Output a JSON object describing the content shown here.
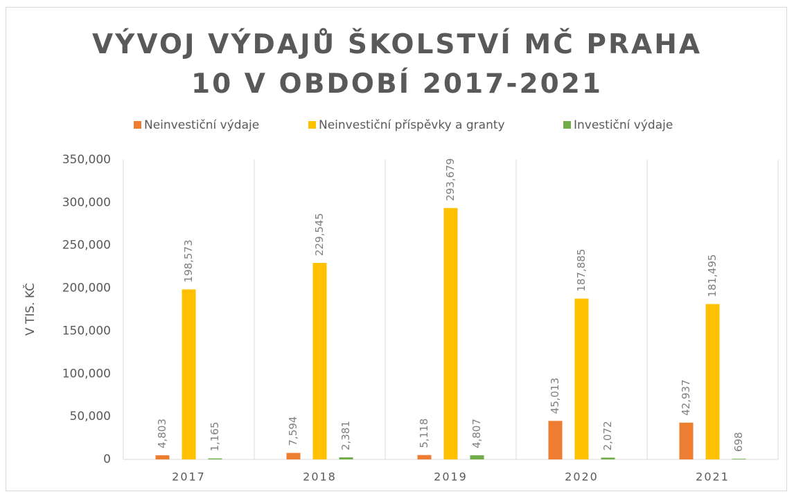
{
  "chart_data": {
    "type": "bar",
    "title": "VÝVOJ VÝDAJŮ ŠKOLSTVÍ MČ PRAHA 10 V OBDOBÍ 2017-2021",
    "y_label": "V TIS. KČ",
    "categories": [
      "2017",
      "2018",
      "2019",
      "2020",
      "2021"
    ],
    "series": [
      {
        "name": "Neinvestiční výdaje",
        "color": "#ed7d31",
        "values": [
          4803,
          7594,
          5118,
          45013,
          42937
        ],
        "value_labels": [
          "4,803",
          "7,594",
          "5,118",
          "45,013",
          "42,937"
        ]
      },
      {
        "name": "Neinvestiční příspěvky a granty",
        "color": "#ffc000",
        "values": [
          198573,
          229545,
          293679,
          187885,
          181495
        ],
        "value_labels": [
          "198,573",
          "229,545",
          "293,679",
          "187,885",
          "181,495"
        ]
      },
      {
        "name": "Investiční výdaje",
        "color": "#70ad47",
        "values": [
          1165,
          2381,
          4807,
          2072,
          698
        ],
        "value_labels": [
          "1,165",
          "2,381",
          "4,807",
          "2,072",
          "698"
        ]
      }
    ],
    "ylim": [
      0,
      350000
    ],
    "yticks": [
      0,
      {
        "value": 50000,
        "label": "50,000"
      },
      {
        "value": 100000,
        "label": "100,000"
      },
      {
        "value": 150000,
        "label": "150,000"
      },
      {
        "value": 200000,
        "label": "200,000"
      },
      {
        "value": 250000,
        "label": "250,000"
      },
      {
        "value": 300000,
        "label": "300,000"
      },
      {
        "value": 350000,
        "label": "350,000"
      }
    ],
    "grid": "vertical",
    "legend": "top"
  }
}
